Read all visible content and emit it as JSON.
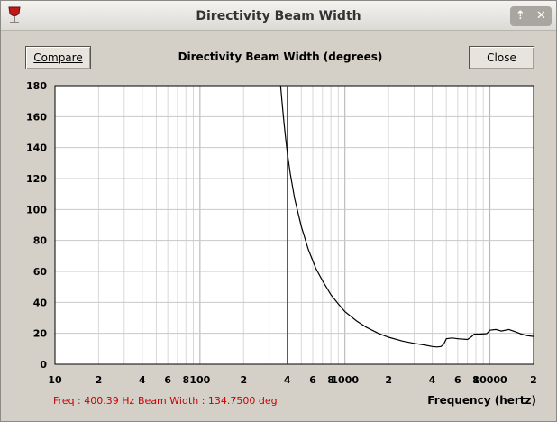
{
  "window": {
    "title": "Directivity Beam Width"
  },
  "titlebar_buttons": {
    "minimize": "⇡",
    "close": "✕"
  },
  "toolbar": {
    "compare_label": "Compare",
    "close_label": "Close"
  },
  "chart_data": {
    "type": "line",
    "title": "Directivity Beam Width (degrees)",
    "xlabel": "Frequency (hertz)",
    "ylabel": "",
    "x_scale": "log",
    "xlim": [
      10,
      20000
    ],
    "ylim": [
      0,
      180
    ],
    "y_ticks": [
      0,
      20,
      40,
      60,
      80,
      100,
      120,
      140,
      160,
      180
    ],
    "x_tick_labels": [
      {
        "x": 10,
        "label": "10"
      },
      {
        "x": 20,
        "label": "2"
      },
      {
        "x": 40,
        "label": "4"
      },
      {
        "x": 60,
        "label": "6"
      },
      {
        "x": 80,
        "label": "8"
      },
      {
        "x": 100,
        "label": "100"
      },
      {
        "x": 200,
        "label": "2"
      },
      {
        "x": 400,
        "label": "4"
      },
      {
        "x": 600,
        "label": "6"
      },
      {
        "x": 800,
        "label": "8"
      },
      {
        "x": 1000,
        "label": "1000"
      },
      {
        "x": 2000,
        "label": "2"
      },
      {
        "x": 4000,
        "label": "4"
      },
      {
        "x": 6000,
        "label": "6"
      },
      {
        "x": 8000,
        "label": "8"
      },
      {
        "x": 10000,
        "label": "10000"
      },
      {
        "x": 20000,
        "label": "2"
      }
    ],
    "grid": true,
    "series": [
      {
        "color": "#000000",
        "x": [
          360,
          370,
          380,
          390,
          400,
          420,
          450,
          500,
          560,
          630,
          700,
          800,
          900,
          1000,
          1200,
          1400,
          1700,
          2000,
          2500,
          3000,
          3500,
          4000,
          4300,
          4600,
          4800,
          5000,
          5500,
          6000,
          7000,
          7500,
          7800,
          8500,
          9500,
          10000,
          11000,
          12000,
          13500,
          15000,
          16500,
          18000,
          20000
        ],
        "y": [
          180,
          167,
          156,
          146,
          137,
          123,
          107,
          89,
          74,
          62,
          54,
          45,
          39,
          34,
          28,
          24,
          20,
          17.5,
          15,
          13.5,
          12.5,
          11.5,
          11.2,
          11.5,
          13,
          16.5,
          17,
          16.5,
          16,
          18,
          19.5,
          19.5,
          19.8,
          22,
          22.5,
          21.5,
          22.5,
          21,
          19.5,
          18.5,
          18
        ]
      }
    ],
    "cursor": {
      "x": 400.39,
      "color": "#cc0000"
    }
  },
  "status": {
    "freq_text": "Freq : 400.39 Hz",
    "beam_text": "Beam Width : 134.7500 deg"
  },
  "colors": {
    "status": "#cc0000",
    "window_bg": "#d4d0c8",
    "curve": "#000000",
    "cursor": "#cc0000"
  }
}
